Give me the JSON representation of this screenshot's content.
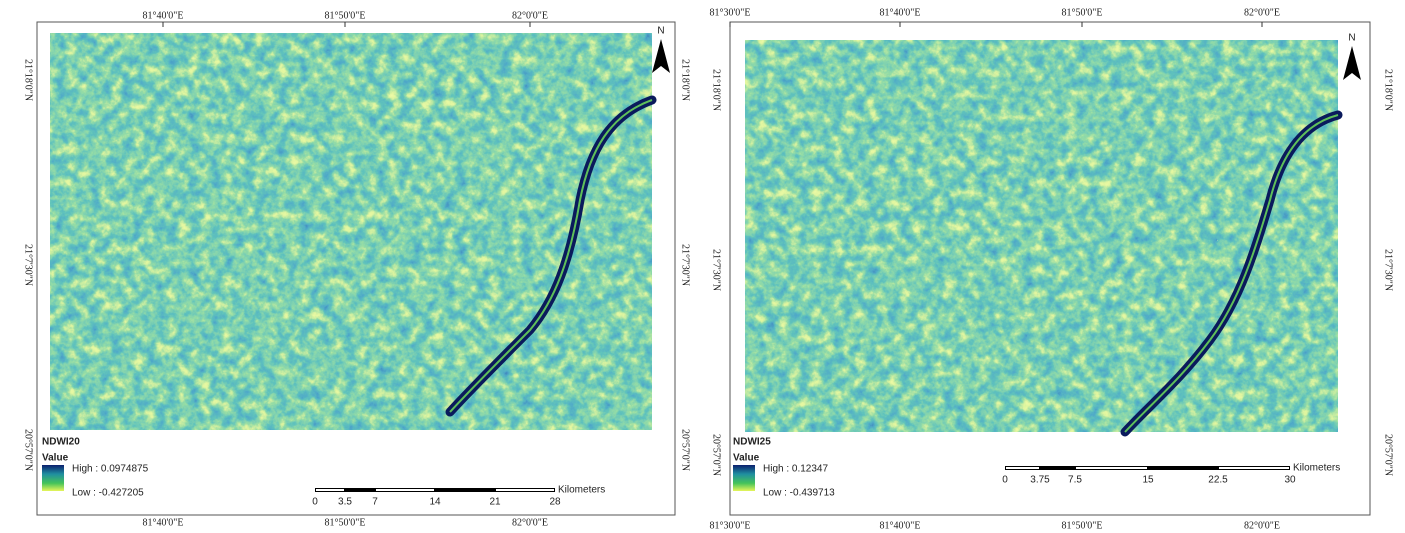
{
  "maps": [
    {
      "title": "NDWI20",
      "legend": {
        "label": "Value",
        "high": "High : 0.0974875",
        "low": "Low : -0.427205"
      },
      "top_labels": [
        "81°40'0\"E",
        "81°50'0\"E",
        "82°0'0\"E"
      ],
      "bottom_labels": [
        "81°40'0\"E",
        "81°50'0\"E",
        "82°0'0\"E"
      ],
      "left_labels": [
        "21°18'0\"N",
        "21°7'30\"N",
        "20°57'0\"N"
      ],
      "right_labels": [
        "21°18'0\"N",
        "21°7'30\"N",
        "20°57'0\"N"
      ],
      "scale": {
        "ticks": [
          "0",
          "3.5",
          "7",
          "14",
          "21",
          "28"
        ],
        "unit": "Kilometers"
      },
      "north": "N"
    },
    {
      "title": "NDWI25",
      "legend": {
        "label": "Value",
        "high": "High : 0.12347",
        "low": "Low : -0.439713"
      },
      "top_labels": [
        "81°30'0\"E",
        "81°40'0\"E",
        "81°50'0\"E",
        "82°0'0\"E"
      ],
      "bottom_labels": [
        "81°30'0\"E",
        "81°40'0\"E",
        "81°50'0\"E",
        "82°0'0\"E"
      ],
      "left_labels": [
        "21°18'0\"N",
        "21°7'30\"N",
        "20°57'0\"N"
      ],
      "right_labels": [
        "21°18'0\"N",
        "21°7'30\"N",
        "20°57'0\"N"
      ],
      "scale": {
        "ticks": [
          "0",
          "3.75",
          "7.5",
          "15",
          "22.5",
          "30"
        ],
        "unit": "Kilometers"
      },
      "north": "N"
    }
  ]
}
